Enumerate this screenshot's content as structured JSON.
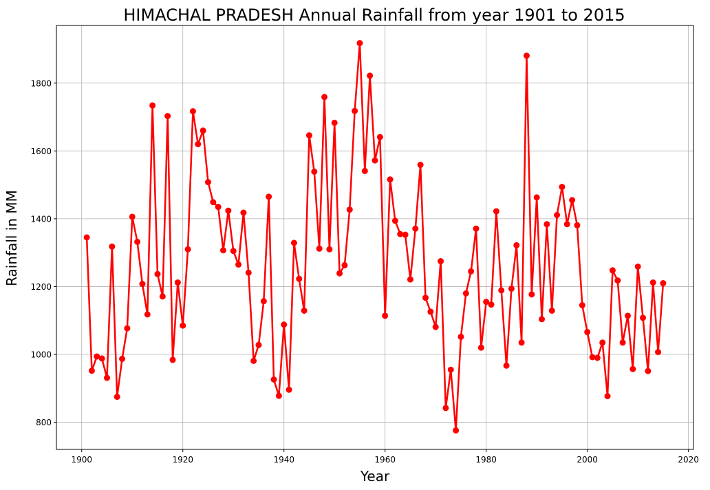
{
  "chart_data": {
    "type": "line",
    "title": "HIMACHAL PRADESH Annual Rainfall from year 1901 to 2015",
    "xlabel": "Year",
    "ylabel": "Rainfall in MM",
    "xlim": [
      1895,
      2021
    ],
    "ylim": [
      720,
      1970
    ],
    "xticks": [
      1900,
      1920,
      1940,
      1960,
      1980,
      2000,
      2020
    ],
    "yticks": [
      800,
      1000,
      1200,
      1400,
      1600,
      1800
    ],
    "grid": true,
    "color": "#ff0000",
    "marker": "circle",
    "x": [
      1901,
      1902,
      1903,
      1904,
      1905,
      1906,
      1907,
      1908,
      1909,
      1910,
      1911,
      1912,
      1913,
      1914,
      1915,
      1916,
      1917,
      1918,
      1919,
      1920,
      1921,
      1922,
      1923,
      1924,
      1925,
      1926,
      1927,
      1928,
      1929,
      1930,
      1931,
      1932,
      1933,
      1934,
      1935,
      1936,
      1937,
      1938,
      1939,
      1940,
      1941,
      1942,
      1943,
      1944,
      1945,
      1946,
      1947,
      1948,
      1949,
      1950,
      1951,
      1952,
      1953,
      1954,
      1955,
      1956,
      1957,
      1958,
      1959,
      1960,
      1961,
      1962,
      1963,
      1964,
      1965,
      1966,
      1967,
      1968,
      1969,
      1970,
      1971,
      1972,
      1973,
      1974,
      1975,
      1976,
      1977,
      1978,
      1979,
      1980,
      1981,
      1982,
      1983,
      1984,
      1985,
      1986,
      1987,
      1988,
      1989,
      1990,
      1991,
      1992,
      1993,
      1994,
      1995,
      1996,
      1997,
      1998,
      1999,
      2000,
      2001,
      2002,
      2003,
      2004,
      2005,
      2006,
      2007,
      2008,
      2009,
      2010,
      2011,
      2012,
      2013,
      2014,
      2015
    ],
    "y": [
      1345,
      952,
      994,
      988,
      931,
      1318,
      875,
      987,
      1077,
      1406,
      1332,
      1208,
      1118,
      1734,
      1237,
      1171,
      1703,
      984,
      1212,
      1085,
      1310,
      1717,
      1620,
      1660,
      1508,
      1449,
      1435,
      1307,
      1424,
      1305,
      1265,
      1418,
      1241,
      981,
      1028,
      1157,
      1465,
      926,
      878,
      1088,
      896,
      1329,
      1223,
      1129,
      1646,
      1539,
      1312,
      1759,
      1310,
      1683,
      1239,
      1263,
      1427,
      1718,
      1918,
      1541,
      1822,
      1572,
      1641,
      1114,
      1516,
      1394,
      1355,
      1353,
      1221,
      1371,
      1559,
      1167,
      1126,
      1081,
      1275,
      842,
      955,
      776,
      1052,
      1180,
      1245,
      1371,
      1020,
      1155,
      1147,
      1422,
      1189,
      967,
      1194,
      1322,
      1035,
      1881,
      1177,
      1463,
      1104,
      1384,
      1129,
      1411,
      1494,
      1384,
      1455,
      1381,
      1145,
      1066,
      992,
      990,
      1035,
      877,
      1248,
      1218,
      1035,
      1114,
      957,
      1259,
      1108,
      951,
      1212,
      1007,
      1210
    ]
  }
}
